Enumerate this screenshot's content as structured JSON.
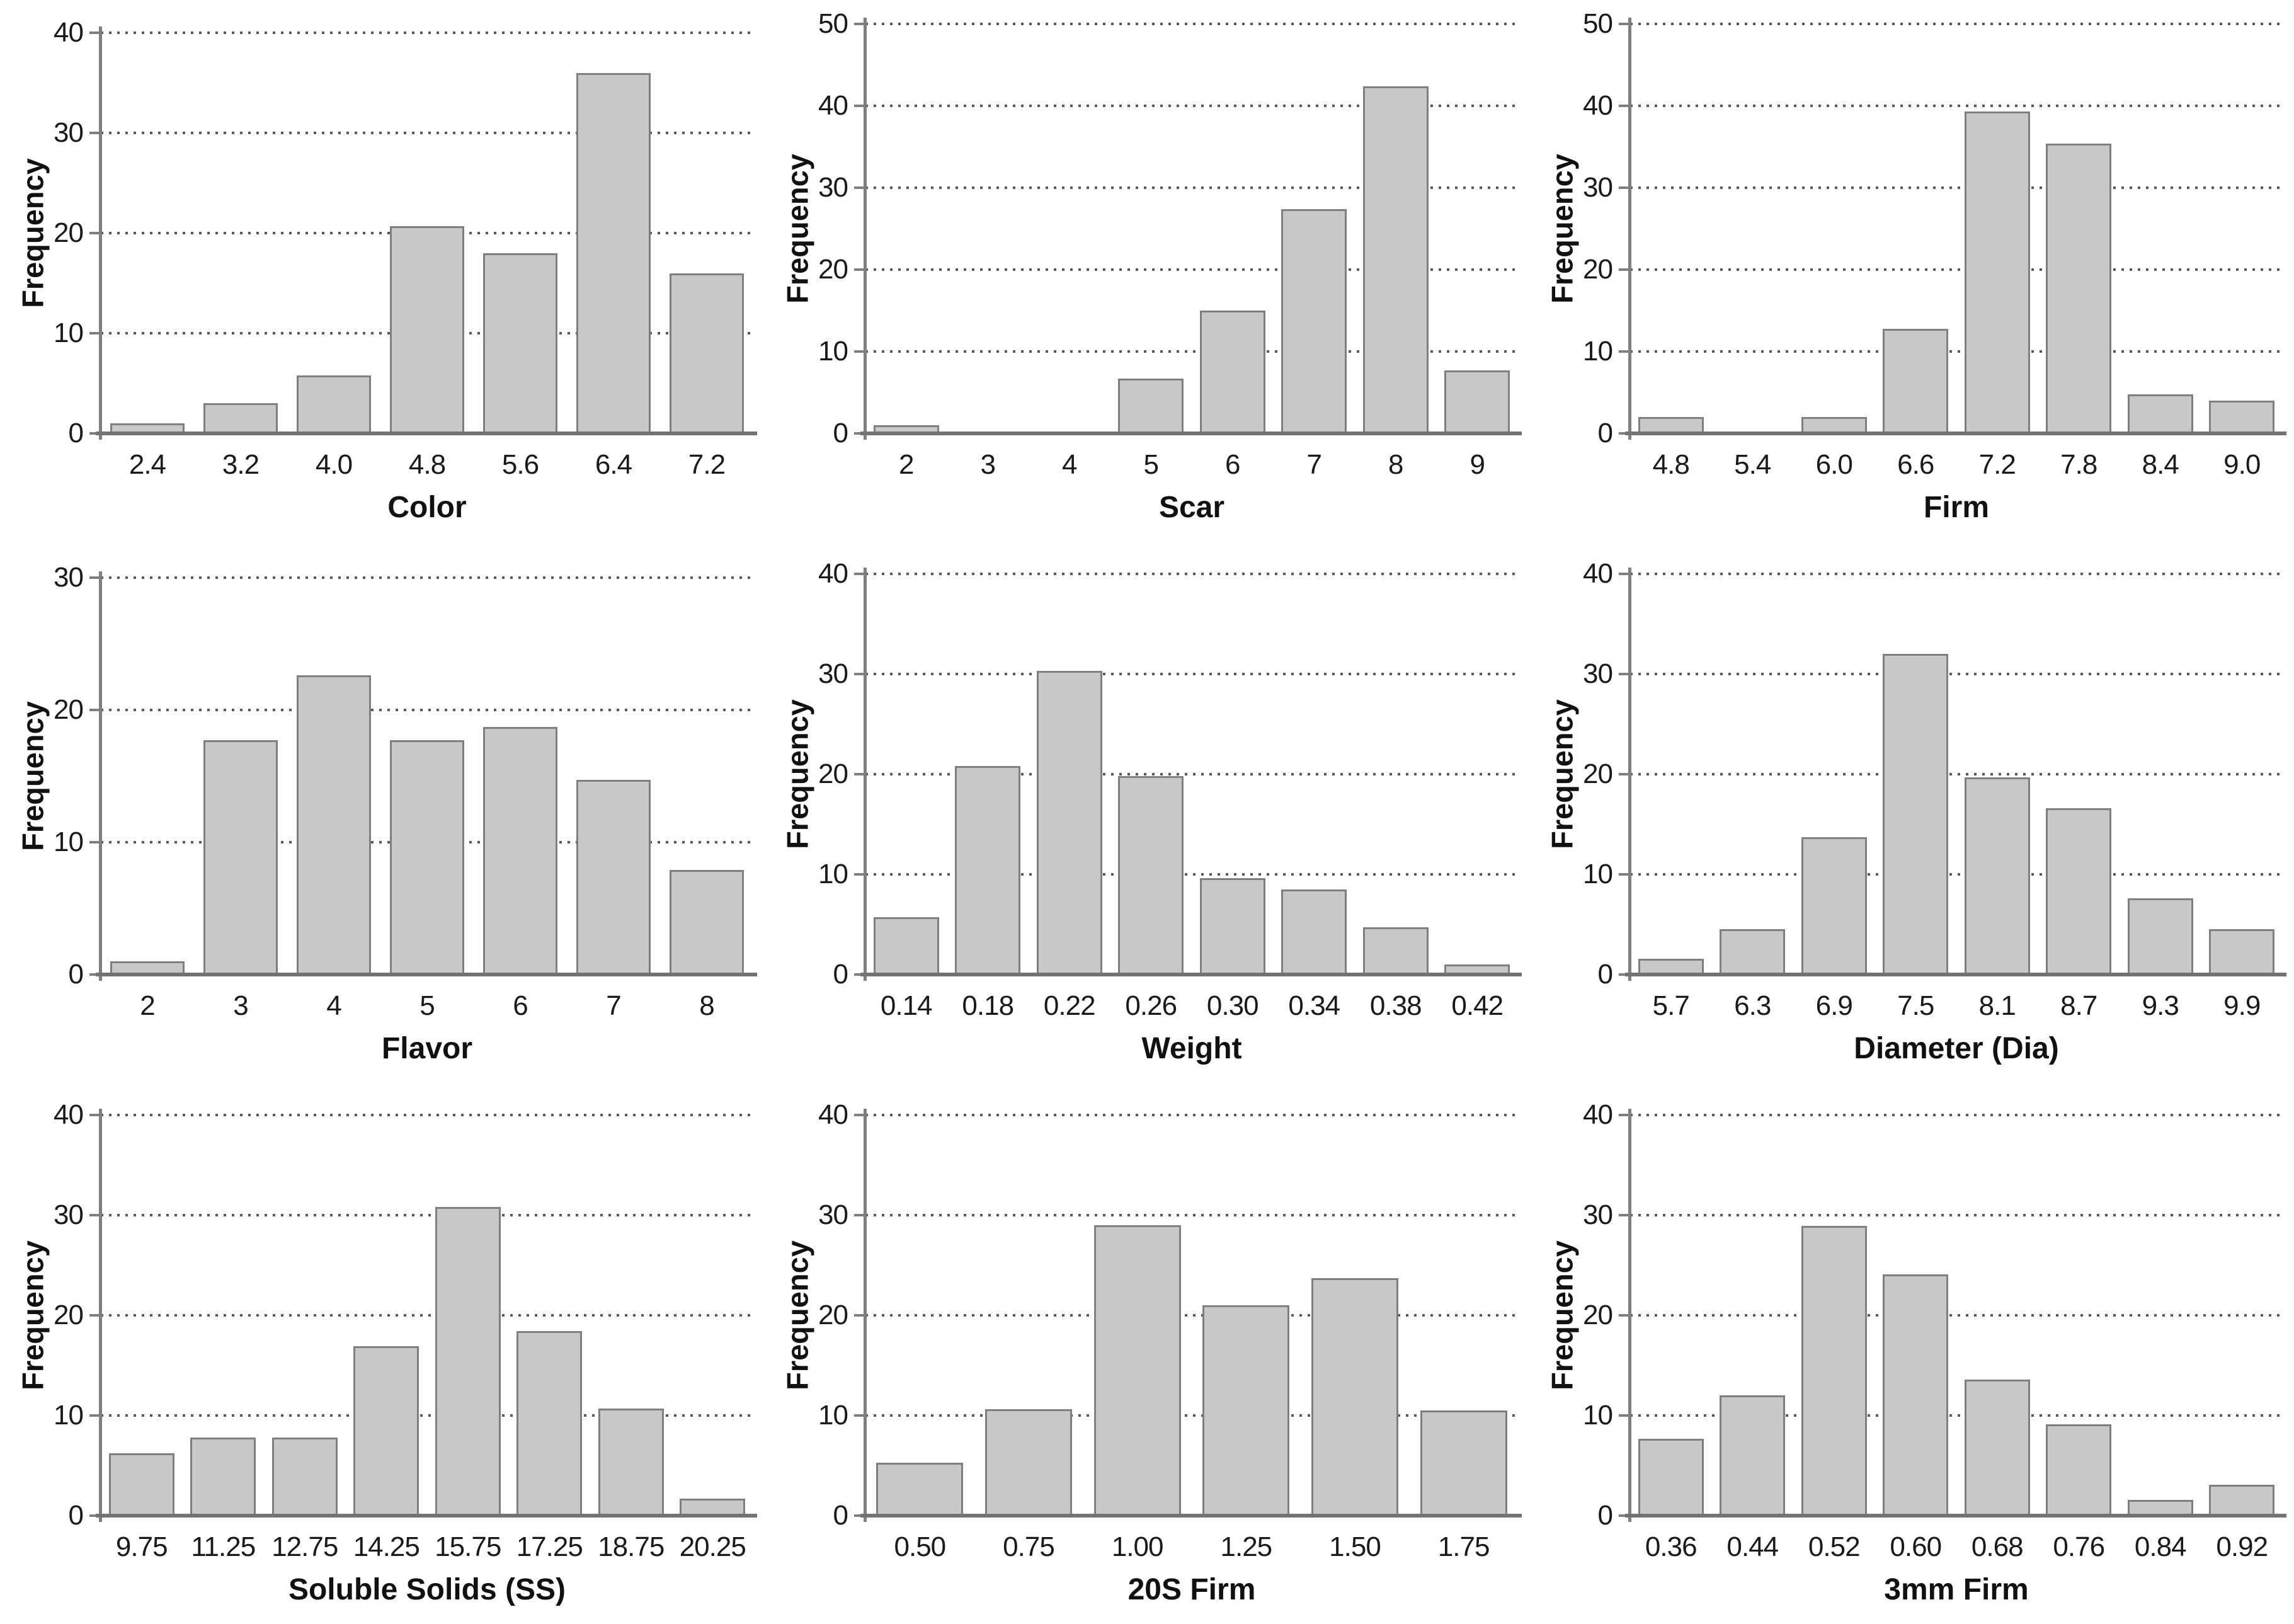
{
  "figure": {
    "description": "3x3 grid of gray frequency histograms",
    "ylabel_shared": "Frequency",
    "style": {
      "bar_fill": "#c8c8c8",
      "bar_border": "#7f7f7f",
      "grid_color": "#595959",
      "axis_color": "#7f7f7f",
      "baseline_color": "#737373",
      "text_color": "#1a1a1a",
      "grid_style": "dotted-horizontal",
      "background": "#ffffff"
    }
  },
  "chart_data": [
    {
      "type": "bar",
      "title": "",
      "xlabel": "Color",
      "ylabel": "Frequency",
      "categories": [
        "2.4",
        "3.2",
        "4.0",
        "4.8",
        "5.6",
        "6.4",
        "7.2"
      ],
      "values": [
        1,
        3,
        5.8,
        20.7,
        18,
        36,
        16
      ],
      "ylim": [
        0,
        40
      ],
      "ytick_step": 10,
      "yticks": [
        0,
        10,
        20,
        30,
        40
      ]
    },
    {
      "type": "bar",
      "title": "",
      "xlabel": "Scar",
      "ylabel": "Frequency",
      "categories": [
        "2",
        "3",
        "4",
        "5",
        "6",
        "7",
        "8",
        "9"
      ],
      "values": [
        1,
        0,
        0,
        6.7,
        15,
        27.4,
        42.4,
        7.7
      ],
      "ylim": [
        0,
        50
      ],
      "ytick_step": 10,
      "yticks": [
        0,
        10,
        20,
        30,
        40,
        50
      ]
    },
    {
      "type": "bar",
      "title": "",
      "xlabel": "Firm",
      "ylabel": "Frequency",
      "categories": [
        "4.8",
        "5.4",
        "6.0",
        "6.6",
        "7.2",
        "7.8",
        "8.4",
        "9.0"
      ],
      "values": [
        2,
        0,
        2,
        12.8,
        39.3,
        35.4,
        4.8,
        4
      ],
      "ylim": [
        0,
        50
      ],
      "ytick_step": 10,
      "yticks": [
        0,
        10,
        20,
        30,
        40,
        50
      ]
    },
    {
      "type": "bar",
      "title": "",
      "xlabel": "Flavor",
      "ylabel": "Frequency",
      "categories": [
        "2",
        "3",
        "4",
        "5",
        "6",
        "7",
        "8"
      ],
      "values": [
        1,
        17.7,
        22.6,
        17.7,
        18.7,
        14.7,
        7.9
      ],
      "ylim": [
        0,
        30
      ],
      "ytick_step": 10,
      "yticks": [
        0,
        10,
        20,
        30
      ]
    },
    {
      "type": "bar",
      "title": "",
      "xlabel": "Weight",
      "ylabel": "Frequency",
      "categories": [
        "0.14",
        "0.18",
        "0.22",
        "0.26",
        "0.30",
        "0.34",
        "0.38",
        "0.42"
      ],
      "values": [
        5.7,
        20.8,
        30.3,
        19.8,
        9.6,
        8.5,
        4.7,
        1
      ],
      "ylim": [
        0,
        40
      ],
      "ytick_step": 10,
      "yticks": [
        0,
        10,
        20,
        30,
        40
      ]
    },
    {
      "type": "bar",
      "title": "",
      "xlabel": "Diameter (Dia)",
      "ylabel": "Frequency",
      "categories": [
        "5.7",
        "6.3",
        "6.9",
        "7.5",
        "8.1",
        "8.7",
        "9.3",
        "9.9"
      ],
      "values": [
        1.6,
        4.5,
        13.7,
        32,
        19.7,
        16.6,
        7.6,
        4.5
      ],
      "ylim": [
        0,
        40
      ],
      "ytick_step": 10,
      "yticks": [
        0,
        10,
        20,
        30,
        40
      ]
    },
    {
      "type": "bar",
      "title": "",
      "xlabel": "Soluble Solids (SS)",
      "ylabel": "Frequency",
      "categories": [
        "9.75",
        "11.25",
        "12.75",
        "14.25",
        "15.75",
        "17.25",
        "18.75",
        "20.25"
      ],
      "values": [
        6.2,
        7.8,
        7.8,
        16.9,
        30.8,
        18.4,
        10.7,
        1.7
      ],
      "ylim": [
        0,
        40
      ],
      "ytick_step": 10,
      "yticks": [
        0,
        10,
        20,
        30,
        40
      ]
    },
    {
      "type": "bar",
      "title": "",
      "xlabel": "20S Firm",
      "ylabel": "Frequency",
      "categories": [
        "0.50",
        "0.75",
        "1.00",
        "1.25",
        "1.50",
        "1.75"
      ],
      "values": [
        5.3,
        10.6,
        29,
        21,
        23.7,
        10.5
      ],
      "ylim": [
        0,
        40
      ],
      "ytick_step": 10,
      "yticks": [
        0,
        10,
        20,
        30,
        40
      ]
    },
    {
      "type": "bar",
      "title": "",
      "xlabel": "3mm Firm",
      "ylabel": "Frequency",
      "categories": [
        "0.36",
        "0.44",
        "0.52",
        "0.60",
        "0.68",
        "0.76",
        "0.84",
        "0.92"
      ],
      "values": [
        7.7,
        12,
        28.9,
        24.1,
        13.6,
        9.1,
        1.6,
        3.1
      ],
      "ylim": [
        0,
        40
      ],
      "ytick_step": 10,
      "yticks": [
        0,
        10,
        20,
        30,
        40
      ]
    }
  ]
}
